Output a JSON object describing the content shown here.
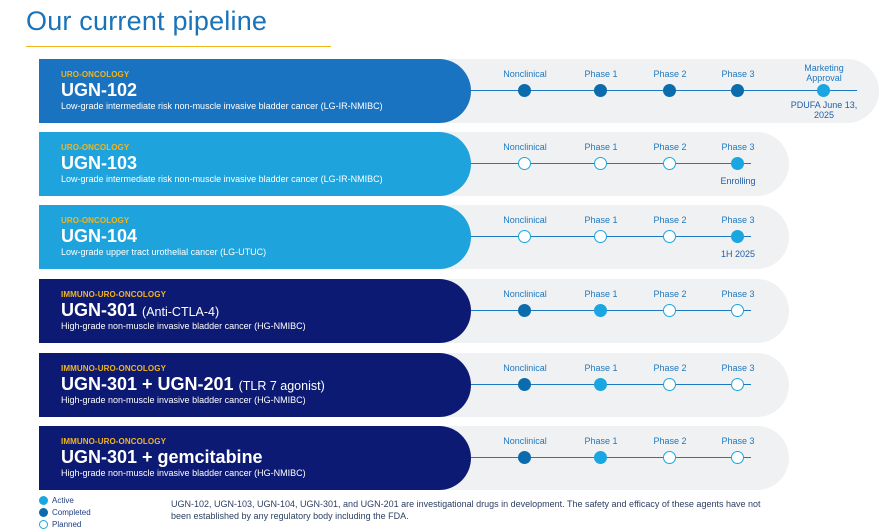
{
  "page": {
    "title": "Our current pipeline"
  },
  "rows": [
    {
      "category": "URO-ONCOLOGY",
      "name": "UGN-102",
      "name_sub": "",
      "description": "Low-grade intermediate risk non-muscle invasive bladder cancer (LG-IR-NMIBC)",
      "color": "#1a73c0",
      "stages": [
        {
          "label": "Nonclinical",
          "status": "completed"
        },
        {
          "label": "Phase 1",
          "status": "completed"
        },
        {
          "label": "Phase 2",
          "status": "completed"
        },
        {
          "label": "Phase 3",
          "status": "completed"
        },
        {
          "label": "Marketing Approval",
          "status": "active"
        }
      ],
      "note": "PDUFA June 13, 2025"
    },
    {
      "category": "URO-ONCOLOGY",
      "name": "UGN-103",
      "name_sub": "",
      "description": "Low-grade intermediate risk non-muscle invasive bladder cancer (LG-IR-NMIBC)",
      "color": "#1ea3dc",
      "stages": [
        {
          "label": "Nonclinical",
          "status": "planned"
        },
        {
          "label": "Phase 1",
          "status": "planned"
        },
        {
          "label": "Phase 2",
          "status": "planned"
        },
        {
          "label": "Phase 3",
          "status": "active"
        }
      ],
      "note": "Enrolling"
    },
    {
      "category": "URO-ONCOLOGY",
      "name": "UGN-104",
      "name_sub": "",
      "description": "Low-grade upper tract urothelial cancer (LG-UTUC)",
      "color": "#1ea3dc",
      "stages": [
        {
          "label": "Nonclinical",
          "status": "planned"
        },
        {
          "label": "Phase 1",
          "status": "planned"
        },
        {
          "label": "Phase 2",
          "status": "planned"
        },
        {
          "label": "Phase 3",
          "status": "active"
        }
      ],
      "note": "1H 2025"
    },
    {
      "category": "IMMUNO-URO-ONCOLOGY",
      "name": "UGN-301",
      "name_sub": "(Anti-CTLA-4)",
      "description": "High-grade non-muscle invasive bladder cancer (HG-NMIBC)",
      "color": "#0d1a73",
      "stages": [
        {
          "label": "Nonclinical",
          "status": "completed"
        },
        {
          "label": "Phase 1",
          "status": "active"
        },
        {
          "label": "Phase 2",
          "status": "planned"
        },
        {
          "label": "Phase 3",
          "status": "planned"
        }
      ],
      "note": ""
    },
    {
      "category": "IMMUNO-URO-ONCOLOGY",
      "name": "UGN-301 + UGN-201",
      "name_sub": "(TLR 7 agonist)",
      "description": "High-grade non-muscle invasive bladder cancer (HG-NMIBC)",
      "color": "#0d1a73",
      "stages": [
        {
          "label": "Nonclinical",
          "status": "completed"
        },
        {
          "label": "Phase 1",
          "status": "active"
        },
        {
          "label": "Phase 2",
          "status": "planned"
        },
        {
          "label": "Phase 3",
          "status": "planned"
        }
      ],
      "note": ""
    },
    {
      "category": "IMMUNO-URO-ONCOLOGY",
      "name": "UGN-301 + gemcitabine",
      "name_sub": "",
      "description": "High-grade non-muscle invasive bladder cancer (HG-NMIBC)",
      "color": "#0d1a73",
      "stages": [
        {
          "label": "Nonclinical",
          "status": "completed"
        },
        {
          "label": "Phase 1",
          "status": "active"
        },
        {
          "label": "Phase 2",
          "status": "planned"
        },
        {
          "label": "Phase 3",
          "status": "planned"
        }
      ],
      "note": ""
    }
  ],
  "legend": [
    {
      "label": "Active",
      "status": "active"
    },
    {
      "label": "Completed",
      "status": "completed"
    },
    {
      "label": "Planned",
      "status": "planned"
    }
  ],
  "footnote": "UGN-102, UGN-103, UGN-104, UGN-301, and UGN-201 are investigational drugs in development. The safety and efficacy of these agents have not been established by any regulatory body including the FDA."
}
